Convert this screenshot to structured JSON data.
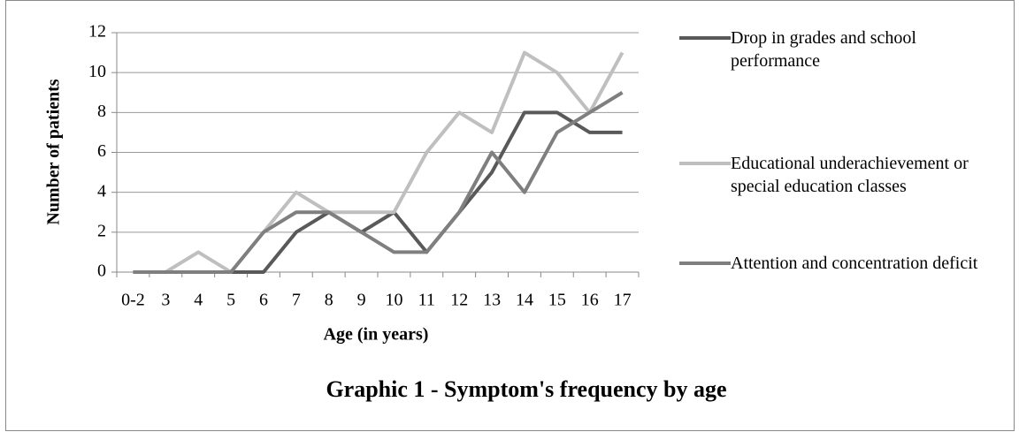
{
  "chart_data": {
    "type": "line",
    "title": "Graphic 1 - Symptom's frequency by age",
    "x_label": "Age (in years)",
    "y_label": "Number of patients",
    "categories": [
      "0-2",
      "3",
      "4",
      "5",
      "6",
      "7",
      "8",
      "9",
      "10",
      "11",
      "12",
      "13",
      "14",
      "15",
      "16",
      "17"
    ],
    "series": [
      {
        "name": "Drop in grades and school performance",
        "color": "#595959",
        "values": [
          0,
          0,
          0,
          0,
          0,
          2,
          3,
          2,
          3,
          1,
          3,
          5,
          8,
          8,
          7,
          7
        ]
      },
      {
        "name": "Educational underachievement or special education classes",
        "color": "#bfbfbf",
        "values": [
          0,
          0,
          1,
          0,
          2,
          4,
          3,
          3,
          3,
          6,
          8,
          7,
          11,
          10,
          8,
          11
        ]
      },
      {
        "name": "Attention and concentration deficit",
        "color": "#7f7f7f",
        "values": [
          0,
          0,
          0,
          0,
          2,
          3,
          3,
          2,
          1,
          1,
          3,
          6,
          4,
          7,
          8,
          9
        ]
      }
    ],
    "ylim": [
      0,
      12
    ],
    "yticks": [
      0,
      2,
      4,
      6,
      8,
      10,
      12
    ],
    "grid": true,
    "legend": "right"
  }
}
